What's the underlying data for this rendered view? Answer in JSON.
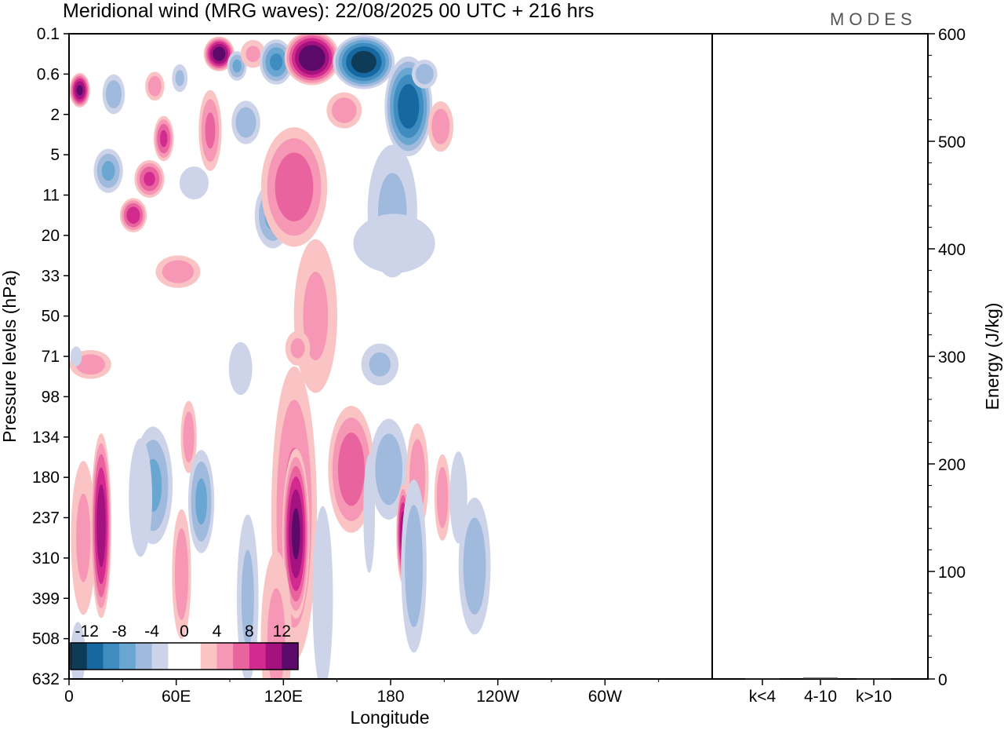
{
  "chart_data": {
    "type": "contour",
    "title": "Meridional wind (MRG waves):  22/08/2025  00 UTC  + 216 hrs",
    "brand": "MODES",
    "xlabel": "Longitude",
    "ylabel_left": "Pressure levels (hPa)",
    "ylabel_right": "Energy (J/kg)",
    "x_ticks": [
      "0",
      "60E",
      "120E",
      "180",
      "120W",
      "60W"
    ],
    "x_tick_degrees": [
      0,
      60,
      120,
      180,
      240,
      300
    ],
    "x_range_degrees": [
      0,
      360
    ],
    "pressure_levels": [
      "0.1",
      "0.6",
      "2",
      "5",
      "11",
      "20",
      "33",
      "50",
      "71",
      "98",
      "134",
      "180",
      "237",
      "310",
      "399",
      "508",
      "632"
    ],
    "energy_ticks": [
      0,
      100,
      200,
      300,
      400,
      500,
      600
    ],
    "energy_ylim": [
      0,
      600
    ],
    "energy_categories": [
      "k<4",
      "4-10",
      "k>10"
    ],
    "energy_values": [
      0.5,
      1.2,
      0.3
    ],
    "colorbar": {
      "labels": [
        "-12",
        "-8",
        "-4",
        "0",
        "4",
        "8",
        "12"
      ],
      "colors": [
        "#0d3b58",
        "#1668a0",
        "#3f8cc1",
        "#6aa6d2",
        "#9fbadd",
        "#cdd3e8",
        "#ffffff",
        "#ffffff",
        "#fac4c4",
        "#f698b5",
        "#e9649e",
        "#d22a8e",
        "#a3127e",
        "#5b0a6a"
      ]
    },
    "blobs": [
      {
        "x": 6,
        "p": 1.4,
        "rx": 6,
        "ry": 0.45,
        "v": 12
      },
      {
        "x": 25,
        "p": 1.5,
        "rx": 7,
        "ry": 0.55,
        "v": -5
      },
      {
        "x": 48,
        "p": 1.3,
        "rx": 6,
        "ry": 0.4,
        "v": 5
      },
      {
        "x": 22,
        "p": 3.4,
        "rx": 9,
        "ry": 0.6,
        "v": -6
      },
      {
        "x": 45,
        "p": 3.6,
        "rx": 9,
        "ry": 0.5,
        "v": 8
      },
      {
        "x": 36,
        "p": 4.5,
        "rx": 8,
        "ry": 0.45,
        "v": 9
      },
      {
        "x": 53,
        "p": 2.6,
        "rx": 6,
        "ry": 0.6,
        "v": 8
      },
      {
        "x": 62,
        "p": 1.1,
        "rx": 5,
        "ry": 0.4,
        "v": -4
      },
      {
        "x": 70,
        "p": 3.7,
        "rx": 10,
        "ry": 0.5,
        "v": -3
      },
      {
        "x": 61,
        "p": 5.9,
        "rx": 14,
        "ry": 0.45,
        "v": 5
      },
      {
        "x": 84,
        "p": 0.5,
        "rx": 9,
        "ry": 0.45,
        "v": 13
      },
      {
        "x": 79,
        "p": 2.4,
        "rx": 7,
        "ry": 1.1,
        "v": 6
      },
      {
        "x": 94,
        "p": 0.8,
        "rx": 6,
        "ry": 0.4,
        "v": -6
      },
      {
        "x": 99,
        "p": 2.2,
        "rx": 9,
        "ry": 0.6,
        "v": -5
      },
      {
        "x": 103,
        "p": 0.5,
        "rx": 8,
        "ry": 0.4,
        "v": 4
      },
      {
        "x": 116,
        "p": 0.7,
        "rx": 10,
        "ry": 0.6,
        "v": -8
      },
      {
        "x": 114,
        "p": 4.5,
        "rx": 11,
        "ry": 0.9,
        "v": -6
      },
      {
        "x": 136,
        "p": 0.6,
        "rx": 16,
        "ry": 0.7,
        "v": 14
      },
      {
        "x": 126,
        "p": 3.8,
        "rx": 20,
        "ry": 1.6,
        "v": 7
      },
      {
        "x": 138,
        "p": 7.0,
        "rx": 14,
        "ry": 2.2,
        "v": 4
      },
      {
        "x": 165,
        "p": 0.7,
        "rx": 18,
        "ry": 0.7,
        "v": -13
      },
      {
        "x": 154,
        "p": 1.9,
        "rx": 11,
        "ry": 0.5,
        "v": 5
      },
      {
        "x": 190,
        "p": 1.8,
        "rx": 14,
        "ry": 1.3,
        "v": -11
      },
      {
        "x": 199,
        "p": 1.0,
        "rx": 8,
        "ry": 0.4,
        "v": -5
      },
      {
        "x": 181,
        "p": 4.4,
        "rx": 16,
        "ry": 1.9,
        "v": -4
      },
      {
        "x": 208,
        "p": 2.3,
        "rx": 8,
        "ry": 0.7,
        "v": 5
      },
      {
        "x": 182,
        "p": 5.2,
        "rx": 28,
        "ry": 0.9,
        "v": -3
      },
      {
        "x": 12,
        "p": 8.2,
        "rx": 13,
        "ry": 0.4,
        "v": 5
      },
      {
        "x": 4,
        "p": 8.0,
        "rx": 4,
        "ry": 0.3,
        "v": -3
      },
      {
        "x": 96,
        "p": 8.3,
        "rx": 8,
        "ry": 0.8,
        "v": -3
      },
      {
        "x": 128,
        "p": 7.8,
        "rx": 8,
        "ry": 0.5,
        "v": 4
      },
      {
        "x": 174,
        "p": 8.2,
        "rx": 12,
        "ry": 0.6,
        "v": -4
      },
      {
        "x": 8,
        "p": 12.5,
        "rx": 8,
        "ry": 2.2,
        "v": 4
      },
      {
        "x": 18,
        "p": 12.2,
        "rx": 6,
        "ry": 2.4,
        "v": 11
      },
      {
        "x": 47,
        "p": 11.2,
        "rx": 12,
        "ry": 1.6,
        "v": -6
      },
      {
        "x": 40,
        "p": 11.5,
        "rx": 8,
        "ry": 1.8,
        "v": -3
      },
      {
        "x": 67,
        "p": 10.0,
        "rx": 5,
        "ry": 1.0,
        "v": 5
      },
      {
        "x": 74,
        "p": 11.6,
        "rx": 8,
        "ry": 1.4,
        "v": -6
      },
      {
        "x": 63,
        "p": 13.4,
        "rx": 6,
        "ry": 1.8,
        "v": 5
      },
      {
        "x": 100,
        "p": 14.0,
        "rx": 7,
        "ry": 2.4,
        "v": -4
      },
      {
        "x": 126,
        "p": 11.9,
        "rx": 14,
        "ry": 4.0,
        "v": 6
      },
      {
        "x": 127,
        "p": 12.4,
        "rx": 8,
        "ry": 2.2,
        "v": 12
      },
      {
        "x": 116,
        "p": 15.0,
        "rx": 10,
        "ry": 2.5,
        "v": 4
      },
      {
        "x": 142,
        "p": 14.0,
        "rx": 7,
        "ry": 2.8,
        "v": -3
      },
      {
        "x": 158,
        "p": 10.8,
        "rx": 14,
        "ry": 1.7,
        "v": 7
      },
      {
        "x": 179,
        "p": 10.8,
        "rx": 12,
        "ry": 1.4,
        "v": -5
      },
      {
        "x": 187,
        "p": 12.4,
        "rx": 4,
        "ry": 1.3,
        "v": 11
      },
      {
        "x": 195,
        "p": 11.0,
        "rx": 7,
        "ry": 1.5,
        "v": 5
      },
      {
        "x": 193,
        "p": 13.2,
        "rx": 8,
        "ry": 2.4,
        "v": -5
      },
      {
        "x": 168,
        "p": 11.9,
        "rx": 4,
        "ry": 1.8,
        "v": -3
      },
      {
        "x": 209,
        "p": 11.5,
        "rx": 5,
        "ry": 1.2,
        "v": 5
      },
      {
        "x": 218,
        "p": 11.5,
        "rx": 6,
        "ry": 1.4,
        "v": -3
      },
      {
        "x": 227,
        "p": 13.2,
        "rx": 10,
        "ry": 1.9,
        "v": -5
      },
      {
        "x": 5,
        "p": 15.4,
        "rx": 5,
        "ry": 1.0,
        "v": -3
      }
    ]
  }
}
